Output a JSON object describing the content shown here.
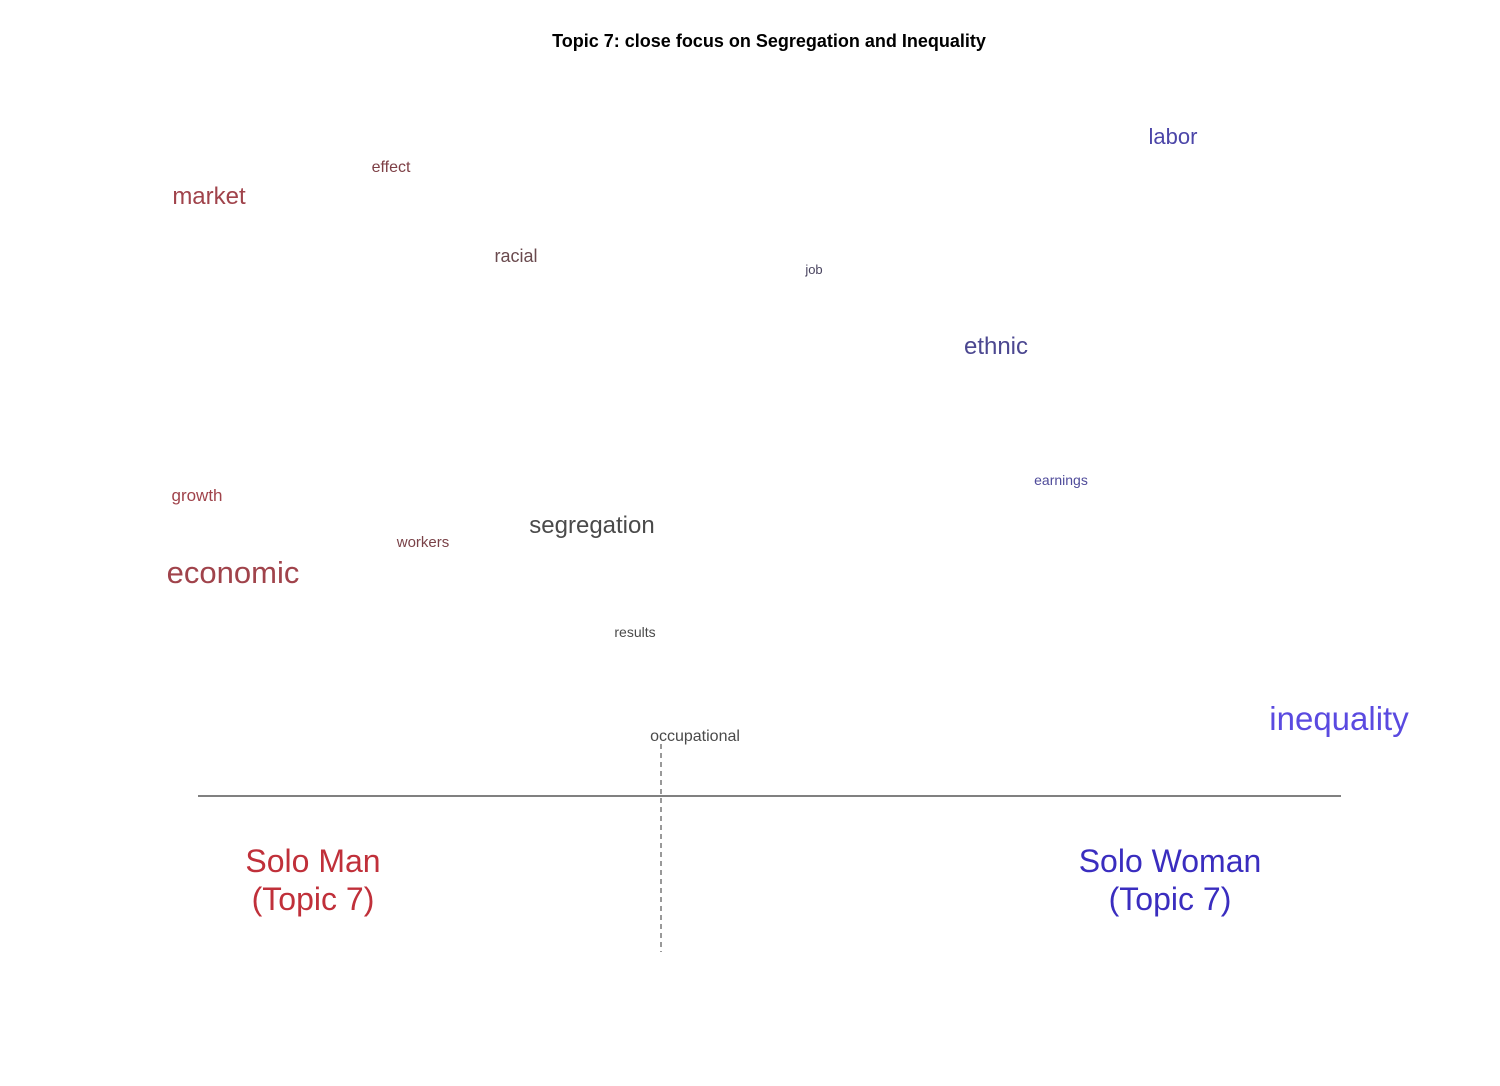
{
  "chart_data": {
    "type": "scatter",
    "title": "Topic 7: close focus on Segregation and Inequality",
    "xlabel": "",
    "ylabel": "",
    "grid": false,
    "groups": [
      {
        "line1": "Solo Man",
        "line2": "(Topic 7)",
        "color": "#C0303A"
      },
      {
        "line1": "Solo Woman",
        "line2": "(Topic 7)",
        "color": "#3A2DBF"
      }
    ],
    "words": [
      {
        "text": "labor",
        "color": "#4B45A8",
        "size": 22
      },
      {
        "text": "effect",
        "color": "#7D3F45",
        "size": 16
      },
      {
        "text": "market",
        "color": "#A0434B",
        "size": 24
      },
      {
        "text": "racial",
        "color": "#6A4A4E",
        "size": 18
      },
      {
        "text": "job",
        "color": "#4A4560",
        "size": 13
      },
      {
        "text": "ethnic",
        "color": "#4B4790",
        "size": 24
      },
      {
        "text": "earnings",
        "color": "#4F4B9A",
        "size": 14
      },
      {
        "text": "growth",
        "color": "#A0434B",
        "size": 17
      },
      {
        "text": "segregation",
        "color": "#4A4A4A",
        "size": 24
      },
      {
        "text": "workers",
        "color": "#7A4248",
        "size": 15
      },
      {
        "text": "economic",
        "color": "#A0434B",
        "size": 31
      },
      {
        "text": "results",
        "color": "#4A4A4A",
        "size": 14
      },
      {
        "text": "inequality",
        "color": "#5A4AE0",
        "size": 33
      },
      {
        "text": "occupational",
        "color": "#4A4A4A",
        "size": 16
      }
    ]
  }
}
